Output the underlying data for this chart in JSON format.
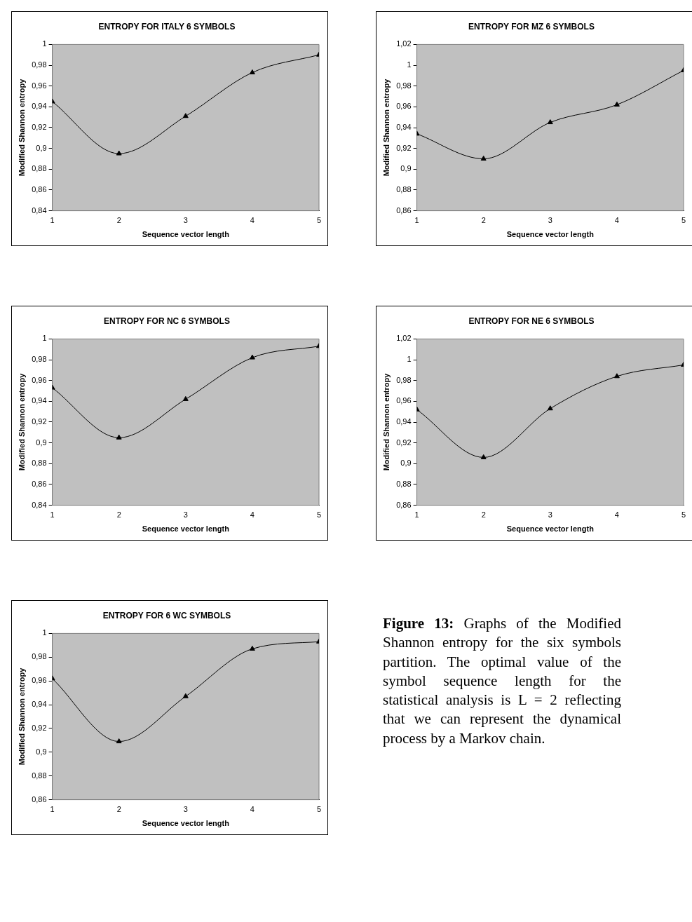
{
  "chart_data": [
    {
      "type": "line",
      "title": "ENTROPY FOR ITALY 6 SYMBOLS",
      "xlabel": "Sequence vector length",
      "ylabel": "Modified Shannon entropy",
      "x": [
        1,
        2,
        3,
        4,
        5
      ],
      "values": [
        0.945,
        0.895,
        0.931,
        0.973,
        0.99
      ],
      "color": "#000000",
      "marker": "triangle",
      "xlim": [
        1,
        5
      ],
      "xticks": [
        1,
        2,
        3,
        4,
        5
      ],
      "ylim": [
        0.84,
        1
      ],
      "yticks": [
        {
          "value": 0.84,
          "label": "0,84"
        },
        {
          "value": 0.86,
          "label": "0,86"
        },
        {
          "value": 0.88,
          "label": "0,88"
        },
        {
          "value": 0.9,
          "label": "0,9"
        },
        {
          "value": 0.92,
          "label": "0,92"
        },
        {
          "value": 0.94,
          "label": "0,94"
        },
        {
          "value": 0.96,
          "label": "0,96"
        },
        {
          "value": 0.98,
          "label": "0,98"
        },
        {
          "value": 1,
          "label": "1"
        }
      ],
      "grid": false,
      "legend": false
    },
    {
      "type": "line",
      "title": "ENTROPY FOR MZ 6 SYMBOLS",
      "xlabel": "Sequence vector length",
      "ylabel": "Modified Shannon entropy",
      "x": [
        1,
        2,
        3,
        4,
        5
      ],
      "values": [
        0.934,
        0.91,
        0.945,
        0.962,
        0.995
      ],
      "color": "#000000",
      "marker": "triangle",
      "xlim": [
        1,
        5
      ],
      "xticks": [
        1,
        2,
        3,
        4,
        5
      ],
      "ylim": [
        0.86,
        1.02
      ],
      "yticks": [
        {
          "value": 0.86,
          "label": "0,86"
        },
        {
          "value": 0.88,
          "label": "0,88"
        },
        {
          "value": 0.9,
          "label": "0,9"
        },
        {
          "value": 0.92,
          "label": "0,92"
        },
        {
          "value": 0.94,
          "label": "0,94"
        },
        {
          "value": 0.96,
          "label": "0,96"
        },
        {
          "value": 0.98,
          "label": "0,98"
        },
        {
          "value": 1,
          "label": "1"
        },
        {
          "value": 1.02,
          "label": "1,02"
        }
      ],
      "grid": false,
      "legend": false
    },
    {
      "type": "line",
      "title": "ENTROPY FOR NC 6 SYMBOLS",
      "xlabel": "Sequence vector length",
      "ylabel": "Modified Shannon entropy",
      "x": [
        1,
        2,
        3,
        4,
        5
      ],
      "values": [
        0.953,
        0.905,
        0.942,
        0.982,
        0.993
      ],
      "color": "#000000",
      "marker": "triangle",
      "xlim": [
        1,
        5
      ],
      "xticks": [
        1,
        2,
        3,
        4,
        5
      ],
      "ylim": [
        0.84,
        1
      ],
      "yticks": [
        {
          "value": 0.84,
          "label": "0,84"
        },
        {
          "value": 0.86,
          "label": "0,86"
        },
        {
          "value": 0.88,
          "label": "0,88"
        },
        {
          "value": 0.9,
          "label": "0,9"
        },
        {
          "value": 0.92,
          "label": "0,92"
        },
        {
          "value": 0.94,
          "label": "0,94"
        },
        {
          "value": 0.96,
          "label": "0,96"
        },
        {
          "value": 0.98,
          "label": "0,98"
        },
        {
          "value": 1,
          "label": "1"
        }
      ],
      "grid": false,
      "legend": false
    },
    {
      "type": "line",
      "title": "ENTROPY FOR NE 6 SYMBOLS",
      "xlabel": "Sequence vector length",
      "ylabel": "Modified Shannon entropy",
      "x": [
        1,
        2,
        3,
        4,
        5
      ],
      "values": [
        0.952,
        0.906,
        0.953,
        0.984,
        0.995
      ],
      "color": "#000000",
      "marker": "triangle",
      "xlim": [
        1,
        5
      ],
      "xticks": [
        1,
        2,
        3,
        4,
        5
      ],
      "ylim": [
        0.86,
        1.02
      ],
      "yticks": [
        {
          "value": 0.86,
          "label": "0,86"
        },
        {
          "value": 0.88,
          "label": "0,88"
        },
        {
          "value": 0.9,
          "label": "0,9"
        },
        {
          "value": 0.92,
          "label": "0,92"
        },
        {
          "value": 0.94,
          "label": "0,94"
        },
        {
          "value": 0.96,
          "label": "0,96"
        },
        {
          "value": 0.98,
          "label": "0,98"
        },
        {
          "value": 1,
          "label": "1"
        },
        {
          "value": 1.02,
          "label": "1,02"
        }
      ],
      "grid": false,
      "legend": false
    },
    {
      "type": "line",
      "title": "ENTROPY FOR 6 WC SYMBOLS",
      "xlabel": "Sequence vector length",
      "ylabel": "Modified Shannon entropy",
      "x": [
        1,
        2,
        3,
        4,
        5
      ],
      "values": [
        0.962,
        0.909,
        0.947,
        0.987,
        0.993
      ],
      "color": "#000000",
      "marker": "triangle",
      "xlim": [
        1,
        5
      ],
      "xticks": [
        1,
        2,
        3,
        4,
        5
      ],
      "ylim": [
        0.86,
        1
      ],
      "yticks": [
        {
          "value": 0.86,
          "label": "0,86"
        },
        {
          "value": 0.88,
          "label": "0,88"
        },
        {
          "value": 0.9,
          "label": "0,9"
        },
        {
          "value": 0.92,
          "label": "0,92"
        },
        {
          "value": 0.94,
          "label": "0,94"
        },
        {
          "value": 0.96,
          "label": "0,96"
        },
        {
          "value": 0.98,
          "label": "0,98"
        },
        {
          "value": 1,
          "label": "1"
        }
      ],
      "grid": false,
      "legend": false
    },
    {
      "type": "other",
      "title": "Figure 13:",
      "annotations": [
        "Graphs of the Modified Shannon entropy for the six symbols partition. The optimal value of the symbol sequence length for the statistical analysis is L = 2 reflecting that we can represent the dynamical process by a Markov chain."
      ]
    }
  ]
}
